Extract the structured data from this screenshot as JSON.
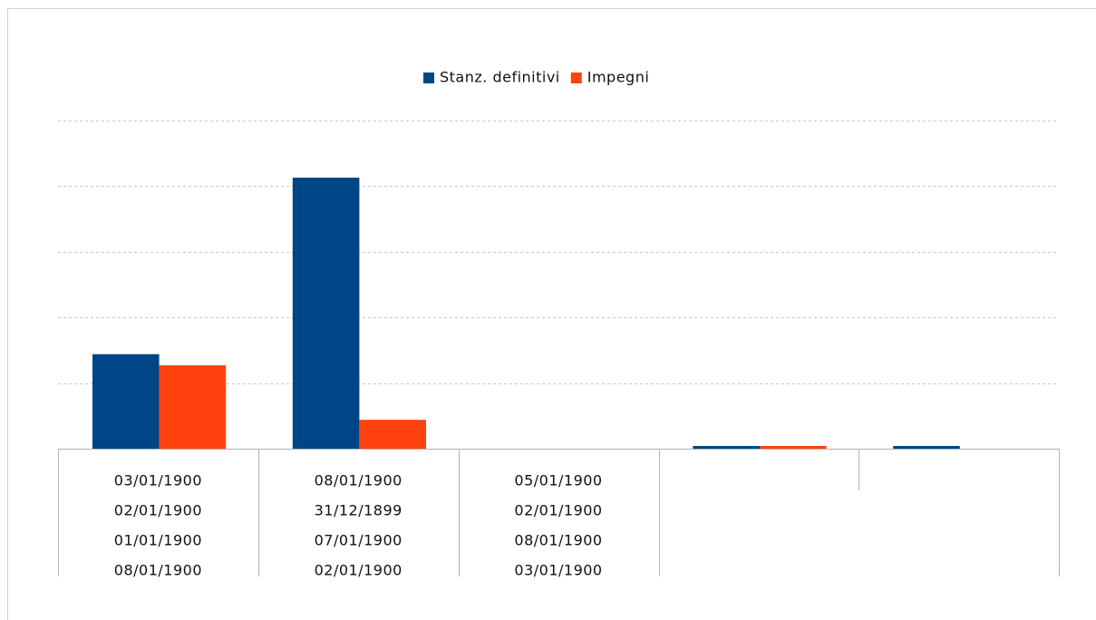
{
  "chart_data": {
    "type": "bar",
    "categories": [
      [
        "03/01/1900",
        "02/01/1900",
        "01/01/1900",
        "08/01/1900"
      ],
      [
        "08/01/1900",
        "31/12/1899",
        "07/01/1900",
        "02/01/1900"
      ],
      [
        "05/01/1900",
        "02/01/1900",
        "08/01/1900",
        "03/01/1900"
      ],
      null,
      null
    ],
    "series": [
      {
        "name": "Stanz. definitivi",
        "color": "#004586",
        "values": [
          1.44,
          4.13,
          0,
          0.03,
          0.03
        ]
      },
      {
        "name": "Impegni",
        "color": "#ff420e",
        "values": [
          1.27,
          0.44,
          0,
          0.03,
          0
        ]
      }
    ],
    "ylim": [
      0,
      5
    ],
    "yticks": [
      0,
      1,
      2,
      3,
      4,
      5
    ],
    "grid": true,
    "legend": "top"
  }
}
